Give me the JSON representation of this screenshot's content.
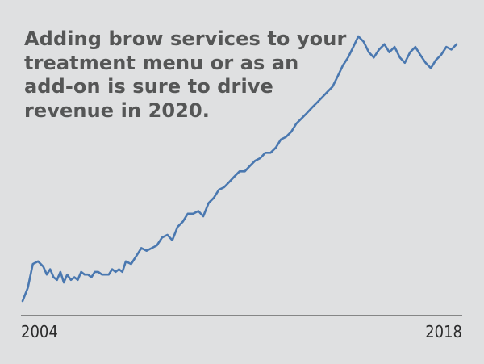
{
  "headline": {
    "lines": [
      "Adding brow services to your",
      "treatment menu or as an",
      "add-on is sure to drive",
      "revenue in 2020."
    ]
  },
  "chart_data": {
    "type": "line",
    "title": "",
    "xlabel": "",
    "ylabel": "",
    "grid": false,
    "legend": "none",
    "x_tick_labels": [
      "2004",
      "2018"
    ],
    "xlim": [
      2004,
      2018
    ],
    "ylim": [
      0,
      100
    ],
    "series": [
      {
        "color": "#4a78b0",
        "x": [
          2004.0,
          2004.17,
          2004.33,
          2004.5,
          2004.67,
          2004.78,
          2004.89,
          2005.0,
          2005.11,
          2005.22,
          2005.33,
          2005.44,
          2005.56,
          2005.67,
          2005.78,
          2005.89,
          2006.0,
          2006.11,
          2006.22,
          2006.33,
          2006.44,
          2006.56,
          2006.67,
          2006.78,
          2006.89,
          2007.0,
          2007.11,
          2007.22,
          2007.33,
          2007.5,
          2007.67,
          2007.83,
          2008.0,
          2008.17,
          2008.33,
          2008.5,
          2008.67,
          2008.83,
          2009.0,
          2009.17,
          2009.33,
          2009.5,
          2009.67,
          2009.83,
          2010.0,
          2010.17,
          2010.33,
          2010.5,
          2010.67,
          2010.83,
          2011.0,
          2011.17,
          2011.33,
          2011.5,
          2011.67,
          2011.83,
          2012.0,
          2012.17,
          2012.33,
          2012.5,
          2012.67,
          2012.83,
          2013.0,
          2013.17,
          2013.33,
          2013.5,
          2013.67,
          2013.83,
          2014.0,
          2014.17,
          2014.33,
          2014.5,
          2014.67,
          2014.83,
          2015.0,
          2015.17,
          2015.33,
          2015.5,
          2015.67,
          2015.83,
          2016.0,
          2016.17,
          2016.33,
          2016.5,
          2016.67,
          2016.83,
          2017.0,
          2017.17,
          2017.33,
          2017.5,
          2017.67,
          2017.83,
          2018.0
        ],
        "values": [
          0,
          5,
          14,
          15,
          13,
          10,
          12,
          9,
          8,
          11,
          7,
          10,
          8,
          9,
          8,
          11,
          10,
          10,
          9,
          11,
          11,
          10,
          10,
          10,
          12,
          11,
          12,
          11,
          15,
          14,
          17,
          20,
          19,
          20,
          21,
          24,
          25,
          23,
          28,
          30,
          33,
          33,
          34,
          32,
          37,
          39,
          42,
          43,
          45,
          47,
          49,
          49,
          51,
          53,
          54,
          56,
          56,
          58,
          61,
          62,
          64,
          67,
          69,
          71,
          73,
          75,
          77,
          79,
          81,
          85,
          89,
          92,
          96,
          100,
          98,
          94,
          92,
          95,
          97,
          94,
          96,
          92,
          90,
          94,
          96,
          93,
          90,
          88,
          91,
          93,
          96,
          95,
          97
        ]
      }
    ]
  }
}
